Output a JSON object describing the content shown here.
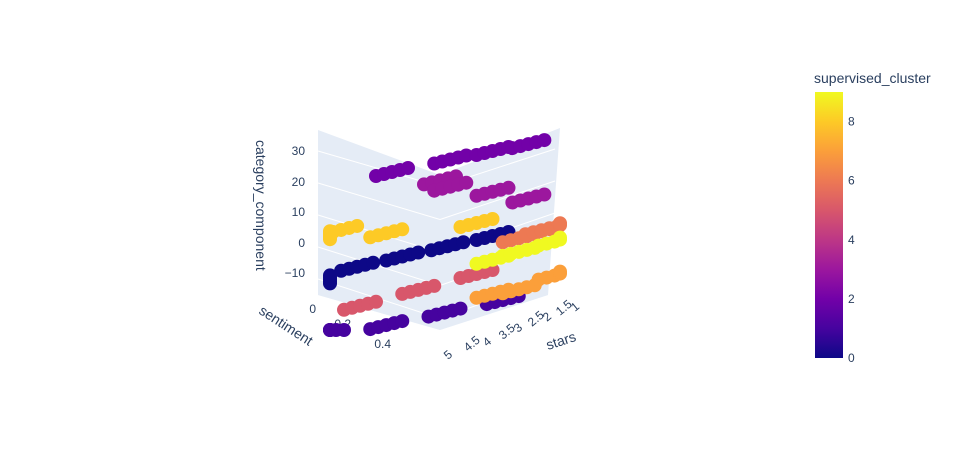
{
  "chart_data": {
    "type": "scatter3d",
    "axes": {
      "x": {
        "title": "stars",
        "ticks": [
          "1",
          "1.5",
          "2",
          "2.5",
          "3",
          "3.5",
          "4",
          "4.5",
          "5"
        ],
        "range": [
          1,
          5
        ]
      },
      "y": {
        "title": "sentiment",
        "ticks": [
          "0",
          "0.2",
          "0.4"
        ],
        "range": [
          0,
          0.5
        ]
      },
      "z": {
        "title": "category_component",
        "ticks": [
          "−10",
          "0",
          "10",
          "20",
          "30"
        ],
        "range": [
          -15,
          35
        ]
      }
    },
    "colorbar": {
      "title": "supervised_cluster",
      "ticks": [
        "0",
        "2",
        "4",
        "6",
        "8"
      ],
      "range": [
        0,
        9
      ],
      "colorscale": [
        "#0d0887",
        "#46039f",
        "#7201a8",
        "#9c179e",
        "#bd3786",
        "#d8576b",
        "#ed7953",
        "#fb9f3a",
        "#fdca26",
        "#f0f921"
      ]
    },
    "grid": true,
    "points": [
      {
        "stars": 5,
        "sentiment": 0.48,
        "category_component": 5,
        "cluster": 0
      },
      {
        "stars": 4.5,
        "sentiment": 0.35,
        "category_component": 5,
        "cluster": 0
      },
      {
        "stars": 4,
        "sentiment": 0.25,
        "category_component": 5,
        "cluster": 0
      },
      {
        "stars": 3.5,
        "sentiment": 0.15,
        "category_component": 5,
        "cluster": 0
      },
      {
        "stars": 3,
        "sentiment": 0.05,
        "category_component": 5,
        "cluster": 0
      },
      {
        "stars": 5,
        "sentiment": 0.4,
        "category_component": -14,
        "cluster": 1
      },
      {
        "stars": 4,
        "sentiment": 0.3,
        "category_component": -14,
        "cluster": 1
      },
      {
        "stars": 3,
        "sentiment": 0.2,
        "category_component": -14,
        "cluster": 1
      },
      {
        "stars": 2,
        "sentiment": 0.1,
        "category_component": -14,
        "cluster": 1
      },
      {
        "stars": 5,
        "sentiment": 0.2,
        "category_component": 30,
        "cluster": 2
      },
      {
        "stars": 4,
        "sentiment": 0.1,
        "category_component": 30,
        "cluster": 2
      },
      {
        "stars": 3,
        "sentiment": 0.05,
        "category_component": 30,
        "cluster": 2
      },
      {
        "stars": 2,
        "sentiment": 0.02,
        "category_component": 30,
        "cluster": 2
      },
      {
        "stars": 5,
        "sentiment": 0.05,
        "category_component": 24,
        "cluster": 3
      },
      {
        "stars": 4,
        "sentiment": 0.1,
        "category_component": 22,
        "cluster": 3
      },
      {
        "stars": 3,
        "sentiment": 0.05,
        "category_component": 18,
        "cluster": 3
      },
      {
        "stars": 2,
        "sentiment": 0.02,
        "category_component": 14,
        "cluster": 3
      },
      {
        "stars": 5,
        "sentiment": 0.3,
        "category_component": -7,
        "cluster": 5
      },
      {
        "stars": 4,
        "sentiment": 0.2,
        "category_component": -6,
        "cluster": 5
      },
      {
        "stars": 3,
        "sentiment": 0.1,
        "category_component": -5,
        "cluster": 5
      },
      {
        "stars": 2,
        "sentiment": 0.05,
        "category_component": 3,
        "cluster": 6
      },
      {
        "stars": 1.5,
        "sentiment": 0.02,
        "category_component": 4,
        "cluster": 6
      },
      {
        "stars": 1,
        "sentiment": 0.01,
        "category_component": 4,
        "cluster": 6
      },
      {
        "stars": 3,
        "sentiment": 0.05,
        "category_component": -12,
        "cluster": 7
      },
      {
        "stars": 2,
        "sentiment": 0.05,
        "category_component": -12,
        "cluster": 7
      },
      {
        "stars": 1,
        "sentiment": 0.02,
        "category_component": -10,
        "cluster": 7
      },
      {
        "stars": 5,
        "sentiment": 0.48,
        "category_component": 18,
        "cluster": 8
      },
      {
        "stars": 4.5,
        "sentiment": 0.4,
        "category_component": 17,
        "cluster": 8
      },
      {
        "stars": 4,
        "sentiment": 0.3,
        "category_component": 13,
        "cluster": 8
      },
      {
        "stars": 3,
        "sentiment": 0.1,
        "category_component": 10,
        "cluster": 8
      },
      {
        "stars": 3,
        "sentiment": 0.05,
        "category_component": -2,
        "cluster": 9
      },
      {
        "stars": 2,
        "sentiment": 0.05,
        "category_component": -1,
        "cluster": 9
      },
      {
        "stars": 1,
        "sentiment": 0.02,
        "category_component": 0,
        "cluster": 9
      }
    ]
  }
}
